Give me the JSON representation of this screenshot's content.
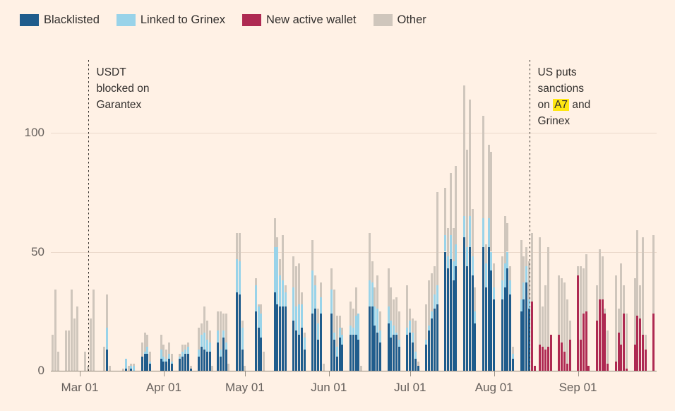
{
  "legend": {
    "items": [
      {
        "key": "blacklisted",
        "label": "Blacklisted",
        "color": "#1F5C8C"
      },
      {
        "key": "linked_to_grinex",
        "label": "Linked to Grinex",
        "color": "#99D3E9"
      },
      {
        "key": "new_active_wallet",
        "label": "New active wallet",
        "color": "#AE2A52"
      },
      {
        "key": "other",
        "label": "Other",
        "color": "#CFC6BC"
      }
    ]
  },
  "colors": {
    "background": "#FFF1E5",
    "grid": "#EBD9CB",
    "axis": "#8F8678",
    "tick_text": "#66605C",
    "text": "#33302E",
    "event_line": "#2E2A26",
    "highlight": "#FFE712"
  },
  "chart_data": {
    "type": "bar",
    "stacked": true,
    "x_ticks": [
      "Mar 01",
      "Apr 01",
      "May 01",
      "Jun 01",
      "Jul 01",
      "Aug 01",
      "Sep 01"
    ],
    "y_ticks": [
      0,
      50,
      100
    ],
    "ylim": [
      0,
      130
    ],
    "grid": true,
    "legend_position": "top-left",
    "series_order": [
      "blacklisted",
      "linked_to_grinex",
      "new_active_wallet",
      "other"
    ],
    "columns": [
      "date",
      "blacklisted",
      "linked_to_grinex",
      "new_active_wallet",
      "other"
    ],
    "events": [
      {
        "date": "Mar 04",
        "lines": [
          "USDT",
          "blocked on",
          "Garantex"
        ]
      },
      {
        "date": "Aug 14",
        "lines": [
          "US puts",
          "sanctions",
          "on |A7| and",
          "Grinex"
        ]
      }
    ],
    "bars": [
      [
        "Feb 19",
        0,
        0,
        0,
        15
      ],
      [
        "Feb 20",
        0,
        0,
        0,
        34
      ],
      [
        "Feb 21",
        0,
        0,
        0,
        8
      ],
      [
        "Feb 24",
        0,
        0,
        0,
        17
      ],
      [
        "Feb 25",
        0,
        0,
        0,
        17
      ],
      [
        "Feb 26",
        0,
        0,
        0,
        34
      ],
      [
        "Feb 27",
        0,
        0,
        0,
        22
      ],
      [
        "Feb 28",
        0,
        0,
        0,
        27
      ],
      [
        "Mar 03",
        0,
        0,
        0,
        8
      ],
      [
        "Mar 04",
        0,
        0,
        0,
        2
      ],
      [
        "Mar 05",
        0,
        0,
        0,
        22
      ],
      [
        "Mar 06",
        0,
        0,
        0,
        34
      ],
      [
        "Mar 10",
        0,
        0,
        0,
        10
      ],
      [
        "Mar 11",
        9,
        9,
        0,
        14
      ],
      [
        "Mar 12",
        0,
        0,
        0,
        2
      ],
      [
        "Mar 17",
        0,
        0,
        0,
        1
      ],
      [
        "Mar 18",
        1,
        4,
        0,
        0
      ],
      [
        "Mar 19",
        0,
        0,
        0,
        2
      ],
      [
        "Mar 20",
        1,
        1,
        0,
        1
      ],
      [
        "Mar 21",
        0,
        2,
        0,
        1
      ],
      [
        "Mar 24",
        6,
        0,
        0,
        6
      ],
      [
        "Mar 25",
        7,
        1,
        0,
        8
      ],
      [
        "Mar 26",
        7,
        3,
        0,
        5
      ],
      [
        "Mar 27",
        3,
        1,
        0,
        4
      ],
      [
        "Mar 31",
        5,
        4,
        0,
        6
      ],
      [
        "Apr 01",
        4,
        2,
        0,
        5
      ],
      [
        "Apr 02",
        4,
        1,
        0,
        4
      ],
      [
        "Apr 03",
        5,
        2,
        0,
        5
      ],
      [
        "Apr 04",
        3,
        1,
        0,
        3
      ],
      [
        "Apr 07",
        5,
        1,
        0,
        1
      ],
      [
        "Apr 08",
        6,
        2,
        0,
        3
      ],
      [
        "Apr 09",
        7,
        2,
        0,
        2
      ],
      [
        "Apr 10",
        7,
        3,
        0,
        2
      ],
      [
        "Apr 11",
        1,
        0,
        0,
        1
      ],
      [
        "Apr 14",
        6,
        3,
        0,
        9
      ],
      [
        "Apr 15",
        10,
        5,
        0,
        5
      ],
      [
        "Apr 16",
        9,
        7,
        0,
        11
      ],
      [
        "Apr 17",
        8,
        5,
        0,
        8
      ],
      [
        "Apr 18",
        8,
        4,
        0,
        5
      ],
      [
        "Apr 19",
        0,
        0,
        0,
        2
      ],
      [
        "Apr 21",
        12,
        5,
        0,
        8
      ],
      [
        "Apr 22",
        6,
        3,
        0,
        16
      ],
      [
        "Apr 23",
        14,
        3,
        0,
        7
      ],
      [
        "Apr 24",
        9,
        3,
        0,
        12
      ],
      [
        "Apr 25",
        0,
        0,
        0,
        3
      ],
      [
        "Apr 28",
        33,
        14,
        0,
        11
      ],
      [
        "Apr 29",
        32,
        14,
        0,
        12
      ],
      [
        "Apr 30",
        9,
        9,
        0,
        3
      ],
      [
        "May 01",
        0,
        0,
        0,
        2
      ],
      [
        "May 05",
        25,
        11,
        0,
        3
      ],
      [
        "May 06",
        18,
        9,
        0,
        1
      ],
      [
        "May 07",
        14,
        10,
        0,
        4
      ],
      [
        "May 08",
        0,
        0,
        0,
        8
      ],
      [
        "May 12",
        33,
        19,
        0,
        12
      ],
      [
        "May 13",
        28,
        24,
        0,
        4
      ],
      [
        "May 14",
        27,
        13,
        0,
        7
      ],
      [
        "May 15",
        27,
        11,
        0,
        19
      ],
      [
        "May 16",
        27,
        6,
        0,
        3
      ],
      [
        "May 19",
        21,
        14,
        0,
        13
      ],
      [
        "May 20",
        17,
        10,
        0,
        17
      ],
      [
        "May 21",
        15,
        13,
        0,
        17
      ],
      [
        "May 22",
        18,
        10,
        0,
        5
      ],
      [
        "May 23",
        9,
        5,
        0,
        2
      ],
      [
        "May 26",
        24,
        18,
        0,
        13
      ],
      [
        "May 27",
        26,
        10,
        0,
        4
      ],
      [
        "May 28",
        13,
        7,
        0,
        6
      ],
      [
        "May 29",
        24,
        7,
        0,
        6
      ],
      [
        "May 30",
        0,
        0,
        0,
        3
      ],
      [
        "Jun 02",
        24,
        10,
        0,
        9
      ],
      [
        "Jun 03",
        13,
        3,
        0,
        18
      ],
      [
        "Jun 04",
        6,
        4,
        0,
        13
      ],
      [
        "Jun 05",
        14,
        4,
        0,
        5
      ],
      [
        "Jun 06",
        11,
        4,
        0,
        3
      ],
      [
        "Jun 09",
        15,
        4,
        0,
        10
      ],
      [
        "Jun 10",
        15,
        3,
        0,
        8
      ],
      [
        "Jun 11",
        15,
        8,
        0,
        12
      ],
      [
        "Jun 12",
        13,
        11,
        0,
        0
      ],
      [
        "Jun 13",
        0,
        0,
        0,
        2
      ],
      [
        "Jun 16",
        27,
        11,
        0,
        20
      ],
      [
        "Jun 17",
        27,
        10,
        0,
        9
      ],
      [
        "Jun 18",
        19,
        8,
        0,
        8
      ],
      [
        "Jun 19",
        16,
        10,
        0,
        14
      ],
      [
        "Jun 20",
        12,
        5,
        0,
        8
      ],
      [
        "Jun 23",
        20,
        7,
        0,
        16
      ],
      [
        "Jun 24",
        14,
        7,
        0,
        14
      ],
      [
        "Jun 25",
        15,
        4,
        0,
        11
      ],
      [
        "Jun 26",
        15,
        1,
        0,
        15
      ],
      [
        "Jun 27",
        10,
        3,
        0,
        12
      ],
      [
        "Jun 30",
        15,
        3,
        0,
        18
      ],
      [
        "Jul 01",
        16,
        5,
        0,
        5
      ],
      [
        "Jul 02",
        12,
        4,
        0,
        6
      ],
      [
        "Jul 03",
        5,
        3,
        0,
        13
      ],
      [
        "Jul 04",
        2,
        0,
        0,
        2
      ],
      [
        "Jul 07",
        11,
        2,
        0,
        15
      ],
      [
        "Jul 08",
        17,
        2,
        0,
        19
      ],
      [
        "Jul 09",
        22,
        3,
        0,
        16
      ],
      [
        "Jul 10",
        26,
        6,
        0,
        12
      ],
      [
        "Jul 11",
        28,
        8,
        0,
        39
      ],
      [
        "Jul 14",
        50,
        7,
        0,
        20
      ],
      [
        "Jul 15",
        43,
        5,
        0,
        12
      ],
      [
        "Jul 16",
        47,
        10,
        0,
        26
      ],
      [
        "Jul 17",
        38,
        8,
        0,
        14
      ],
      [
        "Jul 18",
        44,
        9,
        0,
        33
      ],
      [
        "Jul 21",
        56,
        9,
        0,
        55
      ],
      [
        "Jul 22",
        44,
        8,
        0,
        41
      ],
      [
        "Jul 23",
        52,
        13,
        0,
        49
      ],
      [
        "Jul 24",
        40,
        8,
        0,
        20
      ],
      [
        "Jul 25",
        20,
        5,
        0,
        10
      ],
      [
        "Jul 28",
        52,
        12,
        0,
        43
      ],
      [
        "Jul 29",
        35,
        10,
        0,
        8
      ],
      [
        "Jul 30",
        52,
        12,
        0,
        31
      ],
      [
        "Jul 31",
        42,
        8,
        0,
        42
      ],
      [
        "Aug 01",
        30,
        5,
        0,
        10
      ],
      [
        "Aug 04",
        30,
        8,
        0,
        10
      ],
      [
        "Aug 05",
        35,
        10,
        0,
        20
      ],
      [
        "Aug 06",
        43,
        7,
        0,
        12
      ],
      [
        "Aug 07",
        32,
        6,
        0,
        6
      ],
      [
        "Aug 08",
        5,
        2,
        0,
        3
      ],
      [
        "Aug 11",
        25,
        5,
        0,
        25
      ],
      [
        "Aug 12",
        30,
        7,
        0,
        11
      ],
      [
        "Aug 13",
        37,
        7,
        0,
        8
      ],
      [
        "Aug 14",
        26,
        4,
        0,
        16
      ],
      [
        "Aug 15",
        0,
        0,
        29,
        29
      ],
      [
        "Aug 16",
        0,
        0,
        2,
        0
      ],
      [
        "Aug 18",
        0,
        0,
        11,
        45
      ],
      [
        "Aug 19",
        0,
        0,
        10,
        17
      ],
      [
        "Aug 20",
        0,
        0,
        9,
        27
      ],
      [
        "Aug 21",
        0,
        0,
        10,
        42
      ],
      [
        "Aug 22",
        0,
        0,
        15,
        0
      ],
      [
        "Aug 25",
        0,
        0,
        15,
        25
      ],
      [
        "Aug 26",
        0,
        0,
        12,
        27
      ],
      [
        "Aug 27",
        0,
        0,
        8,
        29
      ],
      [
        "Aug 28",
        0,
        0,
        3,
        27
      ],
      [
        "Aug 29",
        0,
        0,
        13,
        8
      ],
      [
        "Sep 01",
        0,
        0,
        40,
        4
      ],
      [
        "Sep 02",
        0,
        0,
        13,
        31
      ],
      [
        "Sep 03",
        0,
        0,
        24,
        19
      ],
      [
        "Sep 04",
        0,
        0,
        25,
        24
      ],
      [
        "Sep 05",
        0,
        0,
        2,
        0
      ],
      [
        "Sep 08",
        0,
        0,
        21,
        15
      ],
      [
        "Sep 09",
        0,
        0,
        30,
        21
      ],
      [
        "Sep 10",
        0,
        0,
        30,
        18
      ],
      [
        "Sep 11",
        0,
        0,
        24,
        2
      ],
      [
        "Sep 12",
        0,
        0,
        3,
        14
      ],
      [
        "Sep 15",
        0,
        0,
        4,
        36
      ],
      [
        "Sep 16",
        0,
        0,
        16,
        10
      ],
      [
        "Sep 17",
        0,
        0,
        11,
        34
      ],
      [
        "Sep 18",
        0,
        0,
        24,
        12
      ],
      [
        "Sep 19",
        0,
        0,
        1,
        23
      ],
      [
        "Sep 22",
        0,
        0,
        11,
        28
      ],
      [
        "Sep 23",
        0,
        0,
        23,
        36
      ],
      [
        "Sep 24",
        0,
        0,
        22,
        14
      ],
      [
        "Sep 25",
        0,
        0,
        15,
        41
      ],
      [
        "Sep 26",
        0,
        0,
        9,
        6
      ],
      [
        "Sep 29",
        0,
        0,
        24,
        33
      ]
    ]
  }
}
